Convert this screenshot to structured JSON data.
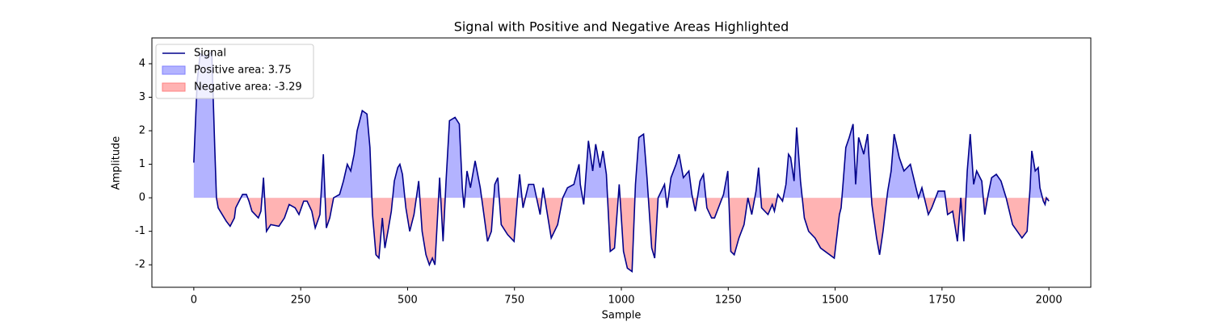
{
  "chart_data": {
    "type": "line",
    "title": "Signal with Positive and Negative Areas Highlighted",
    "xlabel": "Sample",
    "ylabel": "Amplitude",
    "x": [
      0,
      8,
      15,
      28,
      42,
      49,
      53,
      57,
      76,
      85,
      95,
      98,
      114,
      123,
      129,
      136,
      151,
      157,
      163,
      170,
      180,
      199,
      212,
      223,
      237,
      246,
      257,
      265,
      276,
      284,
      295,
      303,
      310,
      318,
      327,
      341,
      350,
      359,
      367,
      375,
      382,
      394,
      405,
      412,
      418,
      426,
      433,
      441,
      447,
      454,
      462,
      469,
      477,
      482,
      488,
      496,
      505,
      515,
      526,
      534,
      543,
      551,
      558,
      564,
      575,
      583,
      590,
      598,
      611,
      621,
      628,
      632,
      639,
      647,
      658,
      670,
      687,
      696,
      704,
      711,
      719,
      734,
      749,
      757,
      762,
      770,
      783,
      795,
      810,
      817,
      836,
      851,
      863,
      874,
      889,
      901,
      904,
      912,
      923,
      933,
      940,
      950,
      957,
      965,
      974,
      984,
      995,
      1005,
      1014,
      1025,
      1033,
      1041,
      1052,
      1060,
      1071,
      1078,
      1086,
      1101,
      1107,
      1116,
      1128,
      1135,
      1145,
      1158,
      1165,
      1173,
      1184,
      1192,
      1200,
      1211,
      1218,
      1230,
      1239,
      1249,
      1256,
      1264,
      1275,
      1287,
      1296,
      1305,
      1315,
      1321,
      1328,
      1343,
      1353,
      1358,
      1366,
      1377,
      1385,
      1391,
      1396,
      1404,
      1410,
      1419,
      1428,
      1438,
      1453,
      1466,
      1498,
      1510,
      1514,
      1519,
      1525,
      1533,
      1542,
      1548,
      1555,
      1567,
      1576,
      1586,
      1597,
      1604,
      1612,
      1623,
      1631,
      1638,
      1650,
      1661,
      1676,
      1691,
      1695,
      1703,
      1718,
      1726,
      1741,
      1756,
      1763,
      1775,
      1786,
      1794,
      1801,
      1809,
      1816,
      1824,
      1831,
      1843,
      1850,
      1858,
      1866,
      1877,
      1888,
      1900,
      1915,
      1937,
      1949,
      1956,
      1960,
      1968,
      1975,
      1979,
      1987,
      1991,
      1994,
      2000
    ],
    "series": [
      {
        "name": "Signal",
        "color": "#00008b",
        "values": [
          1.05,
          3.5,
          4.3,
          4.2,
          4.35,
          1.5,
          0,
          -0.3,
          -0.7,
          -0.85,
          -0.6,
          -0.3,
          0.1,
          0.1,
          -0.1,
          -0.4,
          -0.6,
          -0.4,
          0.6,
          -1.0,
          -0.8,
          -0.85,
          -0.6,
          -0.2,
          -0.3,
          -0.5,
          -0.1,
          -0.1,
          -0.4,
          -0.9,
          -0.5,
          1.3,
          -0.9,
          -0.6,
          0.0,
          0.1,
          0.5,
          1.0,
          0.8,
          1.3,
          2.0,
          2.6,
          2.5,
          1.5,
          -0.5,
          -1.7,
          -1.8,
          -0.6,
          -1.5,
          -1.0,
          -0.4,
          0.5,
          0.9,
          1.0,
          0.7,
          -0.3,
          -1.0,
          -0.5,
          0.5,
          -1.0,
          -1.7,
          -2.0,
          -1.8,
          -2.0,
          0.6,
          -1.3,
          0.5,
          2.3,
          2.4,
          2.2,
          0.3,
          -0.3,
          0.8,
          0.3,
          1.1,
          0.3,
          -1.3,
          -1.0,
          0.4,
          0.6,
          -0.8,
          -1.1,
          -1.3,
          0.0,
          0.7,
          -0.3,
          0.4,
          0.4,
          -0.5,
          0.3,
          -1.2,
          -0.8,
          0.0,
          0.3,
          0.4,
          1.0,
          0.4,
          -0.2,
          1.7,
          0.8,
          1.6,
          0.9,
          1.4,
          0.7,
          -1.6,
          -1.5,
          0.4,
          -1.6,
          -2.1,
          -2.2,
          0.4,
          1.8,
          1.9,
          0.6,
          -1.5,
          -1.8,
          0.0,
          0.4,
          -0.3,
          0.6,
          1.0,
          1.3,
          0.6,
          0.8,
          0.1,
          -0.4,
          0.5,
          0.7,
          -0.3,
          -0.6,
          -0.6,
          -0.2,
          0.1,
          0.8,
          -1.6,
          -1.7,
          -1.2,
          -0.8,
          0.0,
          -0.5,
          0.2,
          0.9,
          -0.3,
          -0.5,
          -0.2,
          -0.4,
          0.1,
          -0.1,
          0.4,
          1.3,
          1.2,
          0.5,
          2.1,
          0.5,
          -0.6,
          -1.0,
          -1.2,
          -1.5,
          -1.8,
          -0.5,
          -0.3,
          0.5,
          1.5,
          1.8,
          2.2,
          0.4,
          1.8,
          1.3,
          1.9,
          -0.2,
          -1.2,
          -1.7,
          -1.0,
          0.2,
          0.8,
          1.9,
          1.2,
          0.8,
          1.0,
          0.2,
          0.0,
          0.3,
          -0.5,
          -0.3,
          0.2,
          0.2,
          -0.5,
          -0.4,
          -1.3,
          0.0,
          -1.3,
          0.8,
          1.9,
          0.4,
          0.8,
          0.5,
          -0.5,
          0.1,
          0.6,
          0.7,
          0.5,
          0.0,
          -0.8,
          -1.2,
          -1.0,
          0.3,
          1.4,
          0.8,
          0.9,
          0.3,
          -0.1,
          -0.2,
          0.0,
          -0.1
        ]
      }
    ],
    "fills": [
      {
        "name": "Positive area: 3.75",
        "color": "#b3b3ff"
      },
      {
        "name": "Negative area: -3.29",
        "color": "#ffb3b3"
      }
    ],
    "xlim": [
      -98,
      2098
    ],
    "ylim": [
      -2.67,
      4.77
    ],
    "xticks": [
      0,
      250,
      500,
      750,
      1000,
      1250,
      1500,
      1750,
      2000
    ],
    "yticks": [
      -2,
      -1,
      0,
      1,
      2,
      3,
      4
    ],
    "legend": "upper left"
  }
}
